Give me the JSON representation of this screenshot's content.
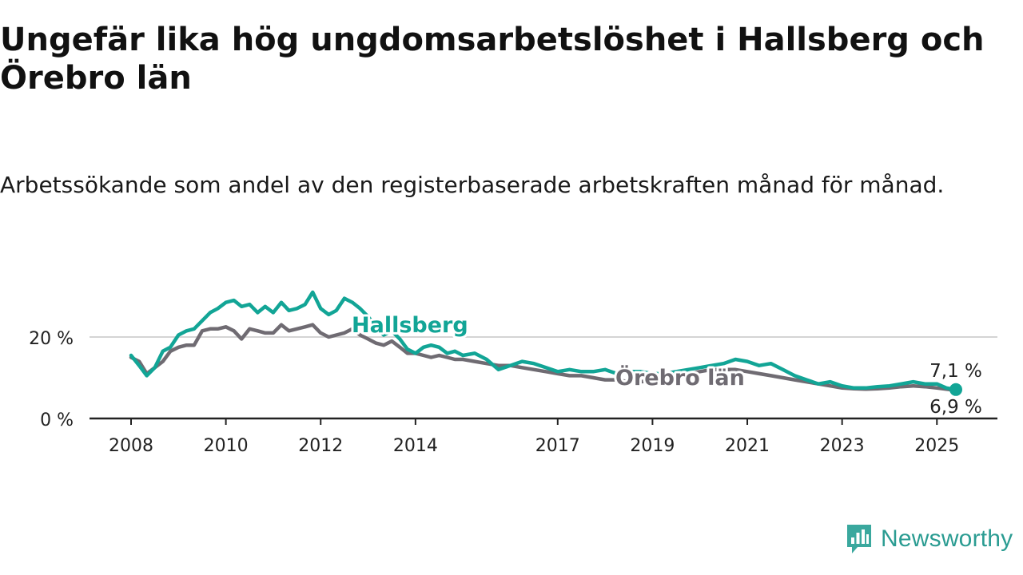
{
  "title": "Ungefär lika hög ungdomsarbetslöshet i Hallsberg och Örebro län",
  "subtitle": "Arbetssökande som andel av den registerbaserade arbetskraften månad för månad.",
  "brand": {
    "name": "Newsworthy",
    "icon": "newsworthy-logo-icon"
  },
  "colors": {
    "hallsberg": "#12a596",
    "orebro": "#6f6b72",
    "axis": "#222222",
    "grid": "#d4d4d4"
  },
  "chart_data": {
    "type": "line",
    "xlim": [
      2008.0,
      2025.5
    ],
    "ylim": [
      0,
      30
    ],
    "y_ticks": [
      {
        "value": 0,
        "label": "0 %"
      },
      {
        "value": 20,
        "label": "20 %"
      }
    ],
    "x_ticks": [
      {
        "value": 2008,
        "label": "2008"
      },
      {
        "value": 2010,
        "label": "2010"
      },
      {
        "value": 2012,
        "label": "2012"
      },
      {
        "value": 2014,
        "label": "2014"
      },
      {
        "value": 2017,
        "label": "2017"
      },
      {
        "value": 2019,
        "label": "2019"
      },
      {
        "value": 2021,
        "label": "2021"
      },
      {
        "value": 2023,
        "label": "2023"
      },
      {
        "value": 2025,
        "label": "2025"
      }
    ],
    "grid": "horizontal",
    "end_labels": {
      "hallsberg": "7,1 %",
      "orebro": "6,9 %"
    },
    "series": [
      {
        "name": "Hallsberg",
        "key": "hallsberg",
        "x": [
          2008.0,
          2008.17,
          2008.33,
          2008.5,
          2008.67,
          2008.83,
          2009.0,
          2009.17,
          2009.33,
          2009.5,
          2009.67,
          2009.83,
          2010.0,
          2010.17,
          2010.33,
          2010.5,
          2010.67,
          2010.83,
          2011.0,
          2011.17,
          2011.33,
          2011.5,
          2011.67,
          2011.83,
          2012.0,
          2012.17,
          2012.33,
          2012.5,
          2012.67,
          2012.83,
          2013.0,
          2013.17,
          2013.33,
          2013.5,
          2013.67,
          2013.83,
          2014.0,
          2014.17,
          2014.33,
          2014.5,
          2014.67,
          2014.83,
          2015.0,
          2015.25,
          2015.5,
          2015.75,
          2016.0,
          2016.25,
          2016.5,
          2016.75,
          2017.0,
          2017.25,
          2017.5,
          2017.75,
          2018.0,
          2018.25,
          2018.5,
          2018.75,
          2019.0,
          2019.25,
          2019.5,
          2019.75,
          2020.0,
          2020.25,
          2020.5,
          2020.75,
          2021.0,
          2021.25,
          2021.5,
          2021.75,
          2022.0,
          2022.25,
          2022.5,
          2022.75,
          2023.0,
          2023.25,
          2023.5,
          2023.75,
          2024.0,
          2024.25,
          2024.5,
          2024.75,
          2025.0,
          2025.2,
          2025.4
        ],
        "values": [
          15.5,
          13.0,
          10.5,
          12.5,
          16.5,
          17.5,
          20.5,
          21.5,
          22.0,
          24.0,
          26.0,
          27.0,
          28.5,
          29.0,
          27.5,
          28.0,
          26.0,
          27.5,
          26.0,
          28.5,
          26.5,
          27.0,
          28.0,
          31.0,
          27.0,
          25.5,
          26.5,
          29.5,
          28.5,
          27.0,
          25.0,
          22.5,
          20.5,
          21.5,
          19.5,
          17.0,
          16.0,
          17.5,
          18.0,
          17.5,
          16.0,
          16.5,
          15.5,
          16.0,
          14.5,
          12.0,
          13.0,
          14.0,
          13.5,
          12.5,
          11.5,
          12.0,
          11.5,
          11.5,
          12.0,
          11.0,
          11.5,
          11.5,
          11.0,
          11.0,
          11.5,
          12.0,
          12.5,
          13.0,
          13.5,
          14.5,
          14.0,
          13.0,
          13.5,
          12.0,
          10.5,
          9.5,
          8.5,
          9.0,
          8.0,
          7.5,
          7.5,
          7.8,
          8.0,
          8.5,
          9.0,
          8.5,
          8.5,
          7.5,
          7.1
        ]
      },
      {
        "name": "Örebro län",
        "key": "orebro",
        "x": [
          2008.0,
          2008.17,
          2008.33,
          2008.5,
          2008.67,
          2008.83,
          2009.0,
          2009.17,
          2009.33,
          2009.5,
          2009.67,
          2009.83,
          2010.0,
          2010.17,
          2010.33,
          2010.5,
          2010.67,
          2010.83,
          2011.0,
          2011.17,
          2011.33,
          2011.5,
          2011.67,
          2011.83,
          2012.0,
          2012.17,
          2012.33,
          2012.5,
          2012.67,
          2012.83,
          2013.0,
          2013.17,
          2013.33,
          2013.5,
          2013.67,
          2013.83,
          2014.0,
          2014.17,
          2014.33,
          2014.5,
          2014.67,
          2014.83,
          2015.0,
          2015.25,
          2015.5,
          2015.75,
          2016.0,
          2016.25,
          2016.5,
          2016.75,
          2017.0,
          2017.25,
          2017.5,
          2017.75,
          2018.0,
          2018.25,
          2018.5,
          2018.75,
          2019.0,
          2019.25,
          2019.5,
          2019.75,
          2020.0,
          2020.25,
          2020.5,
          2020.75,
          2021.0,
          2021.25,
          2021.5,
          2021.75,
          2022.0,
          2022.25,
          2022.5,
          2022.75,
          2023.0,
          2023.25,
          2023.5,
          2023.75,
          2024.0,
          2024.25,
          2024.5,
          2024.75,
          2025.0,
          2025.2,
          2025.4
        ],
        "values": [
          15.0,
          14.0,
          11.0,
          12.5,
          14.0,
          16.5,
          17.5,
          18.0,
          18.0,
          21.5,
          22.0,
          22.0,
          22.5,
          21.5,
          19.5,
          22.0,
          21.5,
          21.0,
          21.0,
          23.0,
          21.5,
          22.0,
          22.5,
          23.0,
          21.0,
          20.0,
          20.5,
          21.0,
          22.0,
          20.5,
          19.5,
          18.5,
          18.0,
          19.0,
          17.5,
          16.0,
          16.0,
          15.5,
          15.0,
          15.5,
          15.0,
          14.5,
          14.5,
          14.0,
          13.5,
          13.0,
          13.0,
          12.5,
          12.0,
          11.5,
          11.0,
          10.5,
          10.5,
          10.0,
          9.5,
          9.5,
          9.0,
          9.0,
          9.5,
          10.0,
          10.5,
          11.0,
          11.5,
          12.0,
          12.0,
          12.0,
          11.5,
          11.0,
          10.5,
          10.0,
          9.5,
          9.0,
          8.5,
          8.0,
          7.5,
          7.3,
          7.2,
          7.3,
          7.5,
          7.8,
          8.0,
          7.8,
          7.5,
          7.2,
          6.9
        ]
      }
    ]
  }
}
